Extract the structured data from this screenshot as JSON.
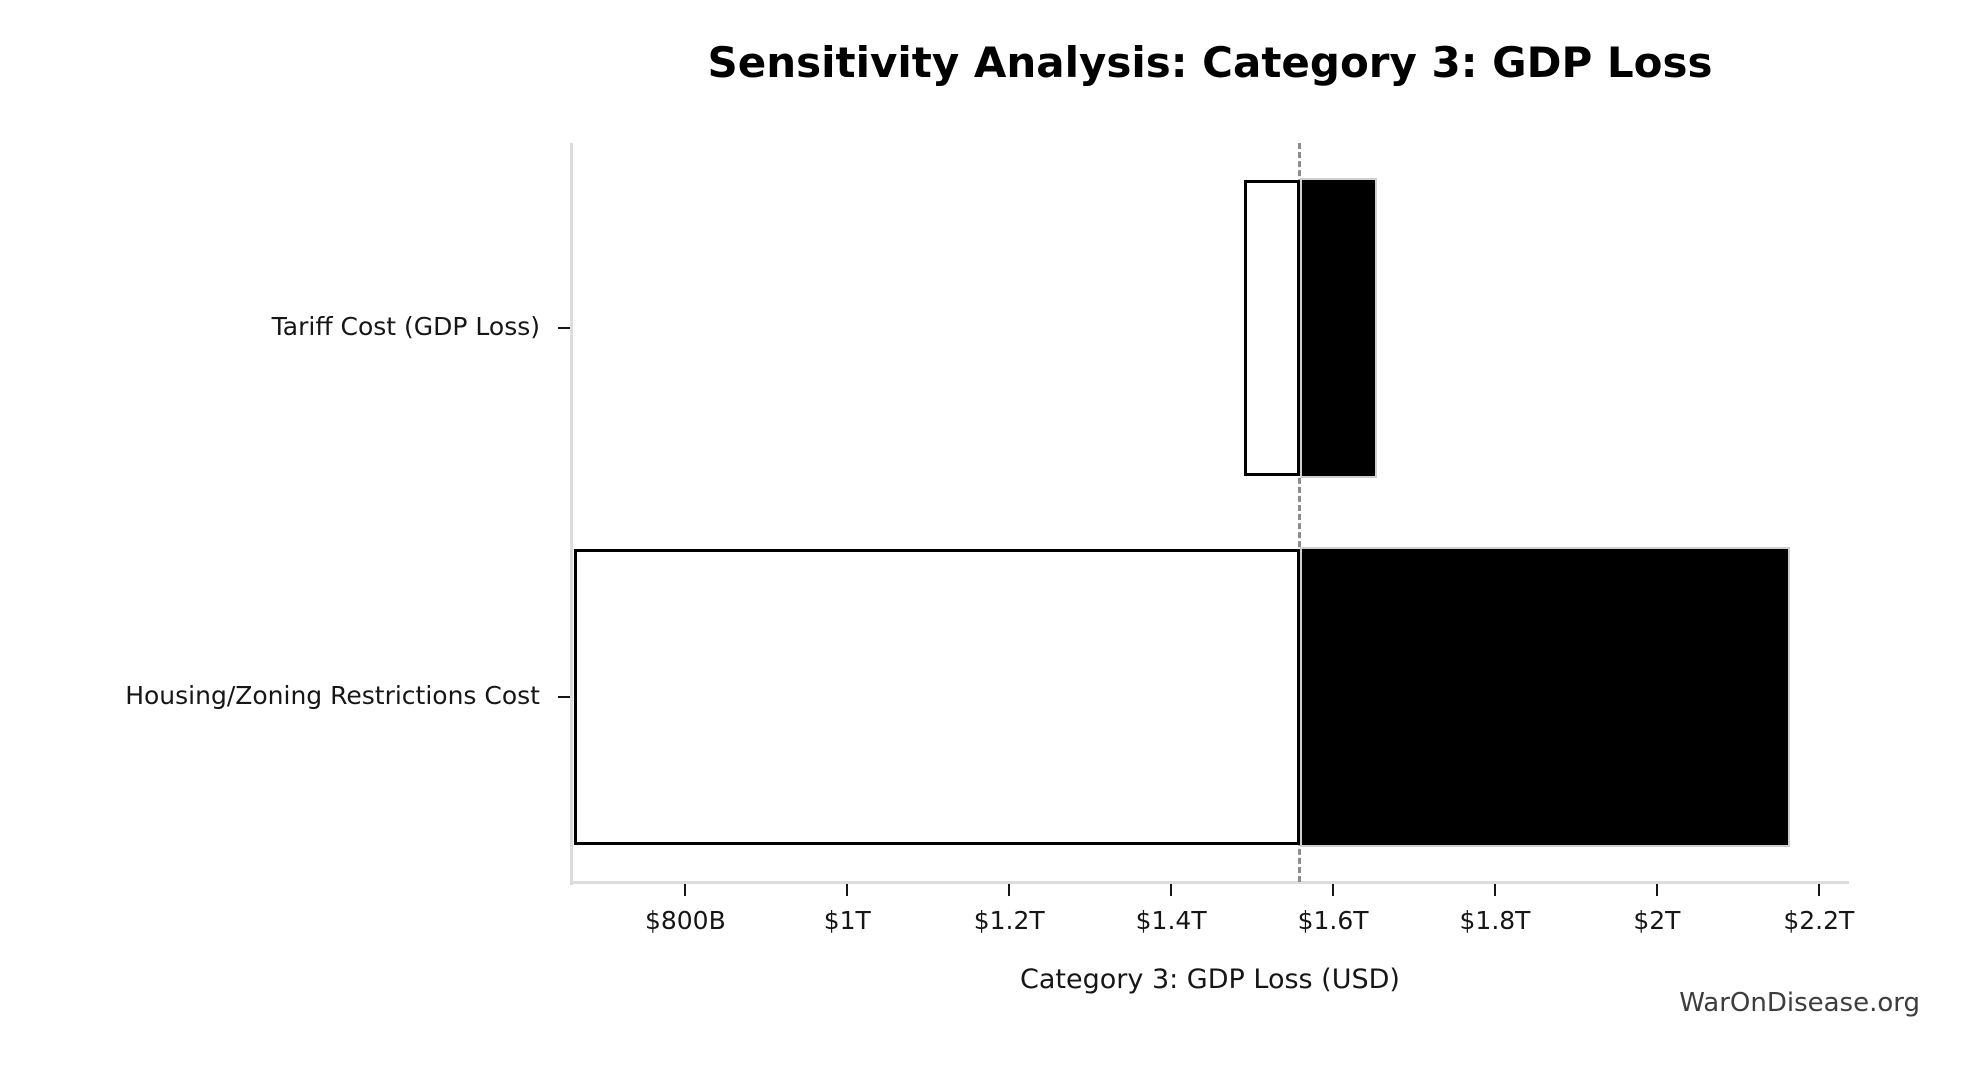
{
  "title": "Sensitivity Analysis: Category 3: GDP Loss",
  "watermark": {
    "text": "WarOnDisease.org",
    "color": "#3d3d3d"
  },
  "chart_data": {
    "type": "bar",
    "variant": "tornado-sensitivity",
    "orientation": "horizontal",
    "title": "Sensitivity Analysis: Category 3: GDP Loss",
    "xlabel": "Category 3: GDP Loss (USD)",
    "ylabel": "",
    "categories": [
      "Tariff Cost (GDP Loss)",
      "Housing/Zoning Restrictions Cost"
    ],
    "baseline_billion": 1559,
    "series": [
      {
        "name": "Tariff Cost (GDP Loss)",
        "low_billion": 1490,
        "high_billion": 1654
      },
      {
        "name": "Housing/Zoning Restrictions Cost",
        "low_billion": 662,
        "high_billion": 2164
      }
    ],
    "x_ticks": [
      {
        "value_billion": 800,
        "label": "$800B"
      },
      {
        "value_billion": 1000,
        "label": "$1T"
      },
      {
        "value_billion": 1200,
        "label": "$1.2T"
      },
      {
        "value_billion": 1400,
        "label": "$1.4T"
      },
      {
        "value_billion": 1600,
        "label": "$1.6T"
      },
      {
        "value_billion": 1800,
        "label": "$1.8T"
      },
      {
        "value_billion": 2000,
        "label": "$2T"
      },
      {
        "value_billion": 2200,
        "label": "$2.2T"
      }
    ],
    "xlim_billion": [
      660,
      2236
    ],
    "bar_height_frac": 0.8,
    "grid": false,
    "legend": null,
    "colors": {
      "low_fill": "#ffffff",
      "high_fill": "#000000",
      "bar_edge": "#000000",
      "high_edge": "#cfcfcf",
      "baseline_line": "#8c8c8c",
      "spine": "#dcdcdc",
      "tick": "#161616",
      "text": "#000000"
    }
  }
}
